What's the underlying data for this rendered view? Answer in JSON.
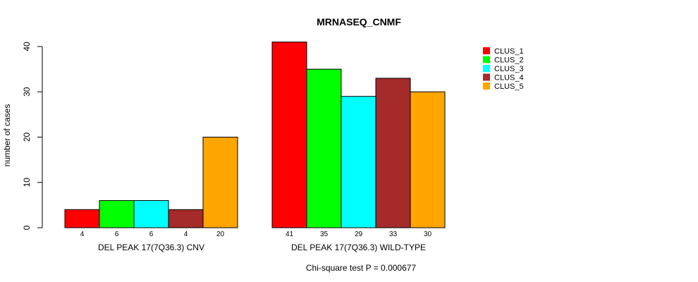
{
  "chart_data": {
    "type": "bar",
    "title": "MRNASEQ_CNMF",
    "ylabel": "number of cases",
    "xlabel": "",
    "ylim": [
      0,
      40
    ],
    "yticks": [
      0,
      10,
      20,
      30,
      40
    ],
    "legend_position": "top-right",
    "groups": [
      {
        "name": "DEL PEAK 17(7Q36.3) CNV",
        "values": [
          4,
          6,
          6,
          4,
          20
        ]
      },
      {
        "name": "DEL PEAK 17(7Q36.3) WILD-TYPE",
        "values": [
          41,
          35,
          29,
          33,
          30
        ]
      }
    ],
    "series": [
      {
        "name": "CLUS_1",
        "color": "#ff0000"
      },
      {
        "name": "CLUS_2",
        "color": "#00ff00"
      },
      {
        "name": "CLUS_3",
        "color": "#00ffff"
      },
      {
        "name": "CLUS_4",
        "color": "#a52a2a"
      },
      {
        "name": "CLUS_5",
        "color": "#ffa500"
      }
    ],
    "annotation": "Chi-square test P = 0.000677"
  }
}
